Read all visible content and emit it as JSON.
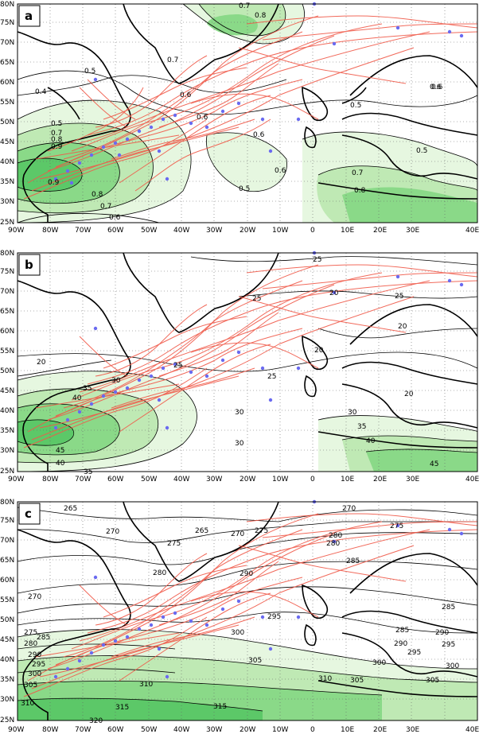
{
  "figure": {
    "x_ticks": [
      "90W",
      "80W",
      "70W",
      "60W",
      "50W",
      "40W",
      "30W",
      "20W",
      "10W",
      "0",
      "10E",
      "20E",
      "30E",
      "40E"
    ],
    "y_ticks": [
      "80N",
      "75N",
      "70N",
      "65N",
      "60N",
      "55N",
      "50N",
      "45N",
      "40N",
      "35N",
      "30N",
      "25N"
    ],
    "colors": {
      "shade_light": "#e6f7e0",
      "shade_mid": "#bfe9b4",
      "shade_dark": "#8ad988",
      "shade_darkest": "#5cc868",
      "track": "#f05a4a",
      "genesis_dot": "#6a6af0",
      "contour": "#000000",
      "coast": "#000000"
    }
  },
  "panels": [
    {
      "label": "a",
      "contour_labels": [
        "0.7",
        "0.8",
        "0.7",
        "0.5",
        "0.6",
        "0.4",
        "0.5",
        "0.7",
        "0.8",
        "0.9",
        "0.9",
        "0.8",
        "0.7",
        "0.6",
        "0.6",
        "0.6",
        "0.5",
        "0.6",
        "0.6",
        "0.5",
        "0.7",
        "0.8",
        "0.6",
        "0.5"
      ]
    },
    {
      "label": "b",
      "contour_labels": [
        "25",
        "25",
        "20",
        "25",
        "20",
        "20",
        "25",
        "30",
        "35",
        "40",
        "45",
        "40",
        "35",
        "30",
        "25",
        "30",
        "30",
        "20",
        "20",
        "35",
        "40",
        "45"
      ]
    },
    {
      "label": "c",
      "contour_labels": [
        "265",
        "270",
        "265",
        "270",
        "275",
        "280",
        "270",
        "275",
        "280",
        "275",
        "280",
        "285",
        "290",
        "295",
        "300",
        "305",
        "310",
        "315",
        "320",
        "315",
        "310",
        "305",
        "300",
        "295",
        "290",
        "285",
        "270",
        "275",
        "280",
        "285",
        "290",
        "295",
        "300",
        "305",
        "310",
        "285",
        "290",
        "295",
        "300",
        "305"
      ]
    }
  ]
}
